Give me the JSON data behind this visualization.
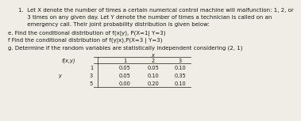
{
  "title_line1": "1.  Let X denote the number of times a certain numerical control machine will malfunction: 1, 2, or",
  "title_line2": "     3 times on any given day. Let Y denote the number of times a technician is called on an",
  "title_line3": "     emergency call. Their joint probability distribution is given below:",
  "line_e": "e. Find the conditional distribution of f(x|y), P(X=1| Y=3)",
  "line_f": "f Find the conditional distribution of f(y|x),P(X=3 | Y=3)",
  "line_g": "g. Determine if the random variables are statistically independent considering (2, 1)",
  "table": {
    "header_x": "x",
    "col_headers": [
      "1",
      "2",
      "3"
    ],
    "row_label": "y",
    "row_headers": [
      "1",
      "3",
      "5"
    ],
    "cell_label": "f(x,y)",
    "values": [
      [
        0.05,
        0.05,
        0.1
      ],
      [
        0.05,
        0.1,
        0.35
      ],
      [
        0.0,
        0.2,
        0.1
      ]
    ]
  },
  "fs_body": 5.0,
  "fs_table": 4.8,
  "bg_color": "#f0ede4",
  "text_color": "#1a1a1a"
}
